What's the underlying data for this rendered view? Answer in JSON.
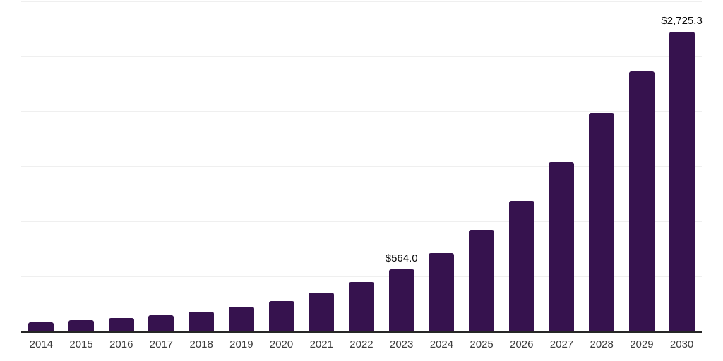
{
  "chart_data": {
    "type": "bar",
    "title": "",
    "xlabel": "",
    "ylabel": "",
    "categories": [
      "2014",
      "2015",
      "2016",
      "2017",
      "2018",
      "2019",
      "2020",
      "2021",
      "2022",
      "2023",
      "2024",
      "2025",
      "2026",
      "2027",
      "2028",
      "2029",
      "2030"
    ],
    "values": [
      83.2,
      100.1,
      120.3,
      146.8,
      181.1,
      224.0,
      276.9,
      352.3,
      448.7,
      564.0,
      713.5,
      921.9,
      1183.7,
      1540.8,
      1989.6,
      2367.9,
      2725.3
    ],
    "data_labels": {
      "2023": "$564.0",
      "2030": "$2,725.3"
    },
    "ylim": [
      0,
      3000
    ],
    "gridline_step": 500,
    "grid": "horizontal-only",
    "legend": "none",
    "y_axis_ticks_visible": false,
    "colors": {
      "bar": "#36124e",
      "axis": "#262626",
      "gridline": "#efefef",
      "tick_label": "#3d3d3d",
      "value_label": "#0a0a0a",
      "background": "#ffffff"
    }
  }
}
